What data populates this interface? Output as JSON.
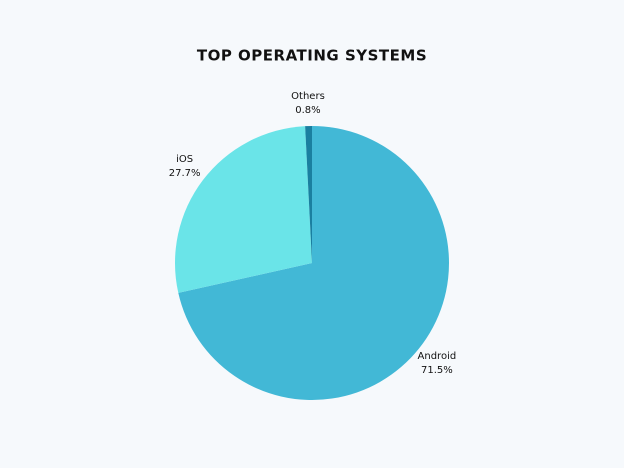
{
  "chart_data": {
    "type": "pie",
    "title": "TOP OPERATING SYSTEMS",
    "categories": [
      "Android",
      "iOS",
      "Others"
    ],
    "values": [
      71.5,
      27.7,
      0.8
    ],
    "value_labels": [
      "71.5%",
      "27.7%",
      "0.8%"
    ],
    "colors": [
      "#42b8d6",
      "#6ae4e8",
      "#1a7fa0"
    ]
  }
}
